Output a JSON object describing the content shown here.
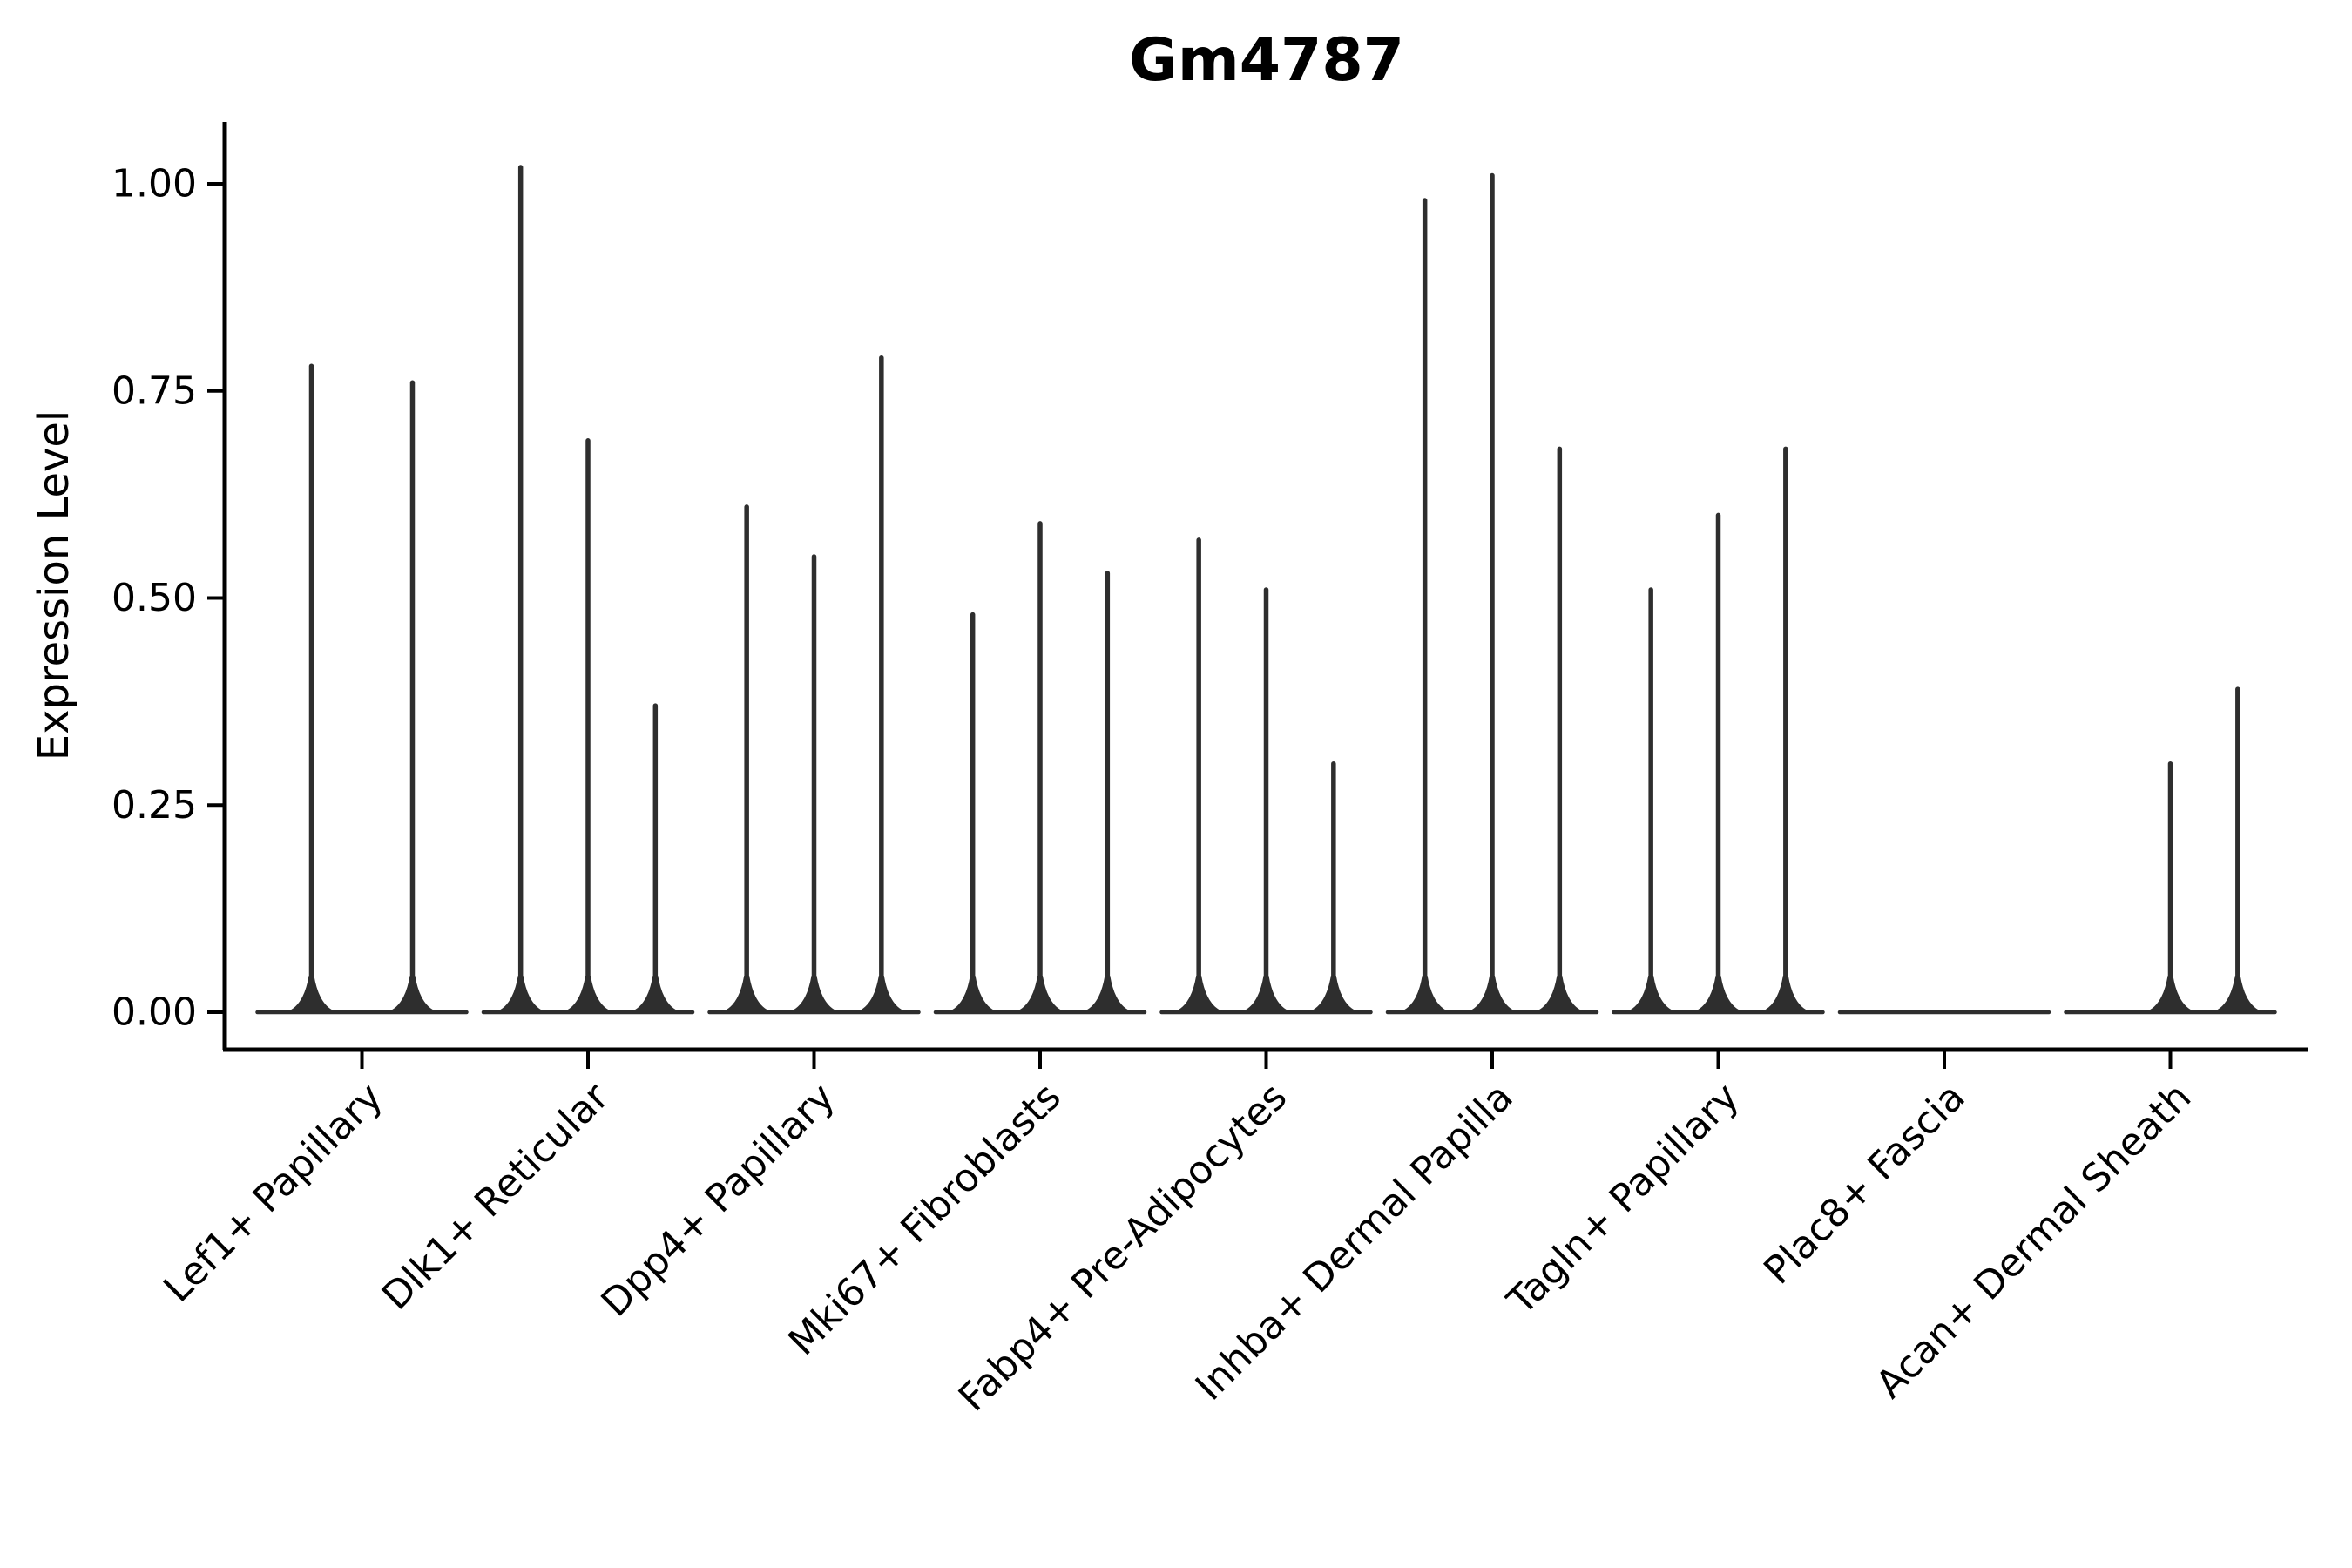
{
  "title": "Gm4787",
  "ylabel": "Expression Level",
  "colors": {
    "violin": "#2e2e2e",
    "axis": "#000000",
    "background": "#ffffff"
  },
  "chart_data": {
    "type": "violin",
    "title": "Gm4787",
    "xlabel": "",
    "ylabel": "Expression Level",
    "grid": false,
    "legend": "none",
    "ylim": [
      -0.045,
      1.075
    ],
    "yticks": [
      {
        "value": 0.0,
        "label": "0.00"
      },
      {
        "value": 0.25,
        "label": "0.25"
      },
      {
        "value": 0.5,
        "label": "0.50"
      },
      {
        "value": 0.75,
        "label": "0.75"
      },
      {
        "value": 1.0,
        "label": "1.00"
      }
    ],
    "categories": [
      "Lef1+ Papillary",
      "Dlk1+ Reticular",
      "Dpp4+ Papillary",
      "Mki67+ Fibroblasts",
      "Fabp4+ Pre-Adipocytes",
      "Inhba+ Dermal Papilla",
      "Tagln+ Papillary",
      "Plac8+ Fascia",
      "Acan+ Dermal Sheath"
    ],
    "violin_max_per_category": [
      [
        0.78,
        0.76
      ],
      [
        1.02,
        0.69,
        0.37
      ],
      [
        0.61,
        0.55,
        0.79
      ],
      [
        0.48,
        0.59,
        0.53
      ],
      [
        0.57,
        0.51,
        0.3
      ],
      [
        0.98,
        1.01,
        0.68
      ],
      [
        0.51,
        0.6,
        0.68
      ],
      [
        0.0,
        0.0,
        0.0
      ],
      [
        0.0,
        0.3,
        0.39
      ]
    ],
    "note": "Each category shows thin collapsed violins: flat baseline at 0 with vertical spikes up to each violin's max expression; zero-max violins render as baseline only."
  }
}
